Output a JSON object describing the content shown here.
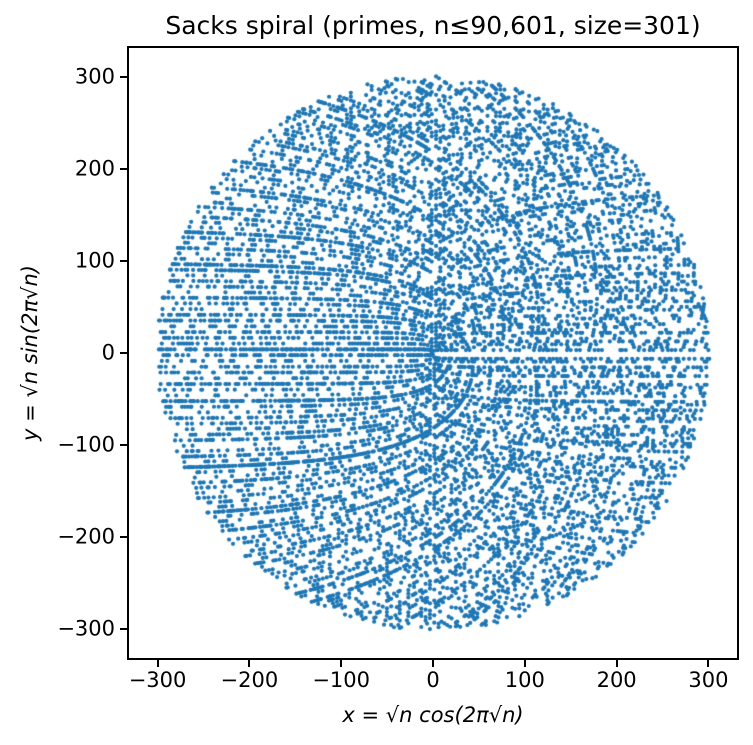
{
  "chart_data": {
    "type": "scatter",
    "title": "Sacks spiral (primes, n≤90,601, size=301)",
    "xlabel": "x = √n cos(2π√n)",
    "ylabel": "y = √n sin(2π√n)",
    "xlim": [
      -331.1,
      331.1
    ],
    "ylim": [
      -331.1,
      331.1
    ],
    "xticks": [
      -300,
      -200,
      -100,
      0,
      100,
      200,
      300
    ],
    "xtick_labels": [
      "−300",
      "−200",
      "−100",
      "0",
      "100",
      "200",
      "300"
    ],
    "yticks": [
      -300,
      -200,
      -100,
      0,
      100,
      200,
      300
    ],
    "ytick_labels": [
      "−300",
      "−200",
      "−100",
      "0",
      "100",
      "200",
      "300"
    ],
    "grid": false,
    "legend": false,
    "background": "#ffffff",
    "spine_color": "#000000",
    "marker": {
      "shape": "circle",
      "color": "#1f77b4",
      "radius_px": 2.1
    },
    "series": [
      {
        "name": "primes",
        "generator": {
          "rule": "Sacks spiral: for every prime n with 2 ≤ n ≤ n_max, plot the point (sqrt(n)·cos(2π·sqrt(n)), sqrt(n)·sin(2π·sqrt(n)))",
          "n_max": 90601,
          "size": 301,
          "x_formula": "sqrt(n)*cos(2*PI*sqrt(n))",
          "y_formula": "sqrt(n)*sin(2*PI*sqrt(n))"
        }
      }
    ]
  }
}
